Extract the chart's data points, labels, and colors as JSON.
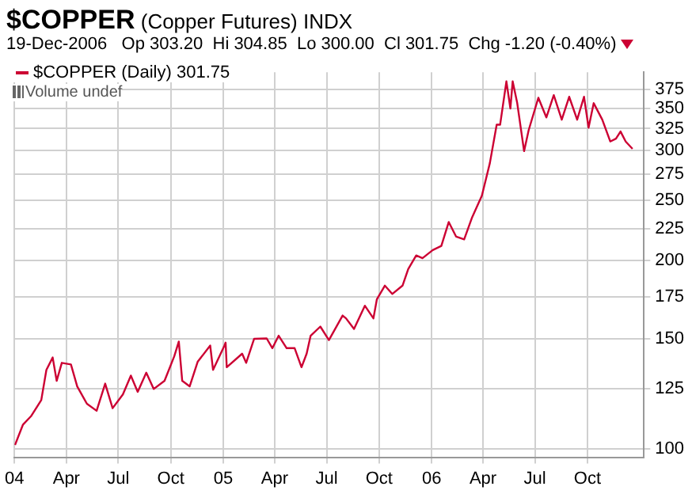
{
  "chart_data": {
    "type": "line",
    "title": "$COPPER (Copper Futures) INDX",
    "subtitle": "19-Dec-2006   Op 303.20  Hi 304.85  Lo 300.00  Cl 301.75  Chg -1.20 (-0.40%)",
    "annotations": [
      "Volume undef"
    ],
    "x": [
      "2004-01-02",
      "2004-01-16",
      "2004-01-30",
      "2004-02-17",
      "2004-02-26",
      "2004-03-08",
      "2004-03-15",
      "2004-03-24",
      "2004-04-09",
      "2004-04-20",
      "2004-05-07",
      "2004-05-24",
      "2004-06-08",
      "2004-06-21",
      "2004-07-09",
      "2004-07-23",
      "2004-08-04",
      "2004-08-19",
      "2004-09-01",
      "2004-09-20",
      "2004-10-07",
      "2004-10-15",
      "2004-10-21",
      "2004-11-03",
      "2004-11-17",
      "2004-12-09",
      "2004-12-14",
      "2005-01-03",
      "2005-01-05",
      "2005-01-07",
      "2005-02-03",
      "2005-02-10",
      "2005-02-24",
      "2005-03-18",
      "2005-03-28",
      "2005-04-08",
      "2005-04-22",
      "2005-05-06",
      "2005-05-18",
      "2005-05-27",
      "2005-06-03",
      "2005-06-20",
      "2005-07-05",
      "2005-07-29",
      "2005-08-04",
      "2005-08-18",
      "2005-09-06",
      "2005-09-21",
      "2005-09-27",
      "2005-10-11",
      "2005-10-24",
      "2005-11-11",
      "2005-11-21",
      "2005-12-05",
      "2005-12-16",
      "2006-01-03",
      "2006-01-18",
      "2006-01-31",
      "2006-02-13",
      "2006-02-27",
      "2006-03-13",
      "2006-03-30",
      "2006-04-13",
      "2006-04-25",
      "2006-05-01",
      "2006-05-12",
      "2006-05-19",
      "2006-05-23",
      "2006-05-31",
      "2006-06-12",
      "2006-06-20",
      "2006-07-07",
      "2006-07-21",
      "2006-08-03",
      "2006-08-17",
      "2006-08-30",
      "2006-09-13",
      "2006-09-25",
      "2006-10-03",
      "2006-10-12",
      "2006-10-27",
      "2006-11-10",
      "2006-11-20",
      "2006-11-28",
      "2006-12-07",
      "2006-12-19"
    ],
    "series": [
      {
        "name": "$COPPER (Daily) 301.75",
        "color": "#cc0033",
        "values": [
          101.5,
          109.4,
          112.8,
          119.7,
          133.8,
          140,
          128.5,
          137.3,
          136.5,
          125.9,
          118.1,
          115.1,
          127.2,
          116.2,
          122.2,
          131,
          123.4,
          132.4,
          124.7,
          128.5,
          140.6,
          148.5,
          128.5,
          125.9,
          137.8,
          146.3,
          133.8,
          146.3,
          147.9,
          135.1,
          142,
          137.3,
          150,
          150.2,
          144.9,
          151.7,
          144.9,
          144.9,
          135.1,
          142,
          151.7,
          156.9,
          149.3,
          163.4,
          161.7,
          155.5,
          169.4,
          161.7,
          173.4,
          182.4,
          176.9,
          182.4,
          193.9,
          203.8,
          201.8,
          207.9,
          211.1,
          230.5,
          218.4,
          216.2,
          234.6,
          253.9,
          286.2,
          329.7,
          329.7,
          386.7,
          350,
          386.7,
          356.9,
          299.2,
          323.1,
          364.1,
          338.7,
          367.6,
          335.9,
          365.4,
          335.9,
          365.4,
          326.2,
          356.9,
          335.9,
          310,
          313.2,
          321.6,
          310,
          301.75
        ]
      }
    ],
    "xlim": [
      "2004-01-01",
      "2007-01-08"
    ],
    "xticks": [
      {
        "value": "2004-01-01",
        "label": "04"
      },
      {
        "value": "2004-04-01",
        "label": "Apr"
      },
      {
        "value": "2004-07-01",
        "label": "Jul"
      },
      {
        "value": "2004-10-01",
        "label": "Oct"
      },
      {
        "value": "2005-01-01",
        "label": "05"
      },
      {
        "value": "2005-04-01",
        "label": "Apr"
      },
      {
        "value": "2005-07-01",
        "label": "Jul"
      },
      {
        "value": "2005-10-01",
        "label": "Oct"
      },
      {
        "value": "2006-01-01",
        "label": "06"
      },
      {
        "value": "2006-04-01",
        "label": "Apr"
      },
      {
        "value": "2006-07-01",
        "label": "Jul"
      },
      {
        "value": "2006-10-01",
        "label": "Oct"
      }
    ],
    "ylim": [
      97,
      400
    ],
    "yticks": [
      100,
      125,
      150,
      175,
      200,
      225,
      250,
      275,
      300,
      325,
      350,
      375
    ],
    "log": "y",
    "grid": true,
    "legend": "top left",
    "marker": "none",
    "line_style": "solid"
  }
}
